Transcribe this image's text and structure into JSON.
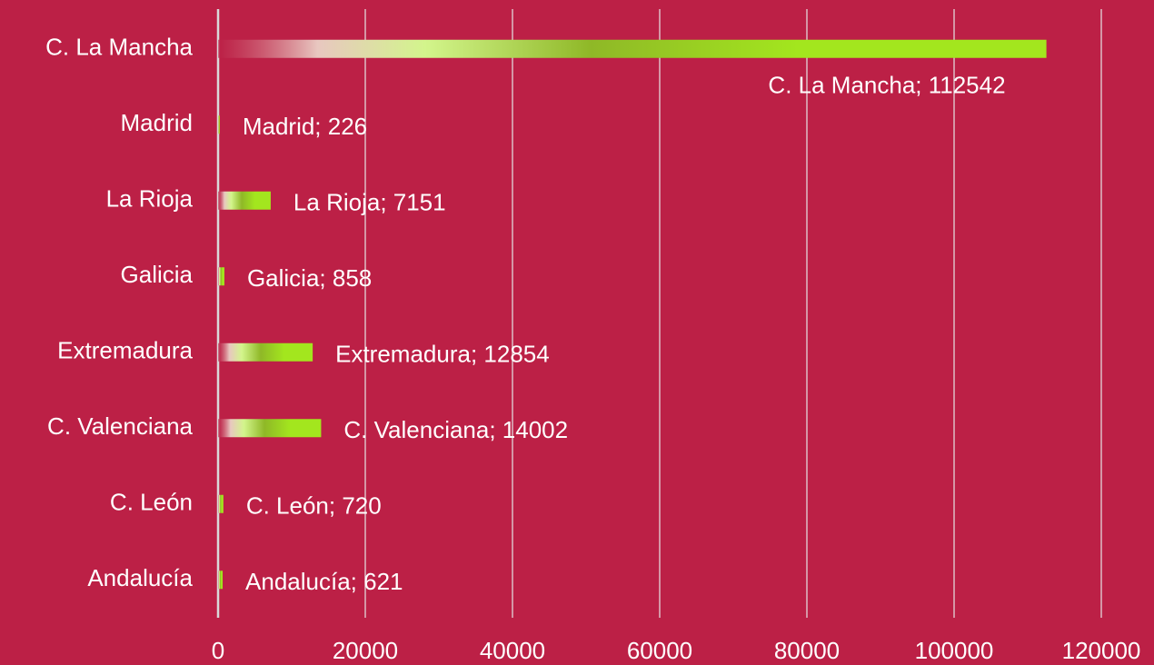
{
  "chart_data": {
    "type": "bar",
    "orientation": "horizontal",
    "categories": [
      "C. La Mancha",
      "Madrid",
      "La Rioja",
      "Galicia",
      "Extremadura",
      "C. Valenciana",
      "C. León",
      "Andalucía"
    ],
    "values": [
      112542,
      226,
      7151,
      858,
      12854,
      14002,
      720,
      621
    ],
    "value_labels": [
      "C. La Mancha; 112542",
      "Madrid; 226",
      "La Rioja; 7151",
      "Galicia; 858",
      "Extremadura; 12854",
      "C. Valenciana; 14002",
      "C. León; 720",
      "Andalucía; 621"
    ],
    "color": "#a3e61e",
    "xlim": [
      0,
      120000
    ],
    "xticks": [
      0,
      20000,
      40000,
      60000,
      80000,
      100000,
      120000
    ],
    "grid": true
  }
}
